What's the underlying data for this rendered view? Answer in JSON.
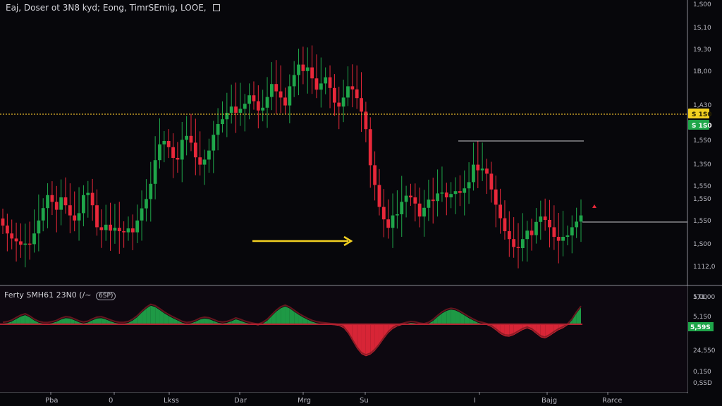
{
  "header": {
    "title": "Eaj, Doser ot 3N8 kyd; Eong, TimrSEmig, LOOE,",
    "icon": "square-icon"
  },
  "indicator_header": {
    "title": "Ferty SMH61 23N0 (/~",
    "badge": "6SP)"
  },
  "colors": {
    "background": "#07070b",
    "up": "#1fa64a",
    "down": "#e8283a",
    "level_line": "#e2b52b",
    "arrow": "#f2d021",
    "tag_yellow": "#f2d021",
    "tag_green": "#1fa64a"
  },
  "chart_data": [
    {
      "type": "candlestick",
      "title": "",
      "y_ticks": [
        "1,S00",
        "1S,10",
        "19,30",
        "1B,00",
        "1,A30",
        "1,5S0",
        "1,3S0",
        "1,550",
        "1,5S0",
        "1,5S0",
        "1,S00",
        "1112,0",
        "1T1,00"
      ],
      "x_ticks": [
        "Pba",
        "0",
        "Lkss",
        "Dar",
        "Mrg",
        "Su",
        "I",
        "Bajg",
        "Rarce"
      ],
      "price_tags": [
        {
          "label": "S 1S0",
          "style": "yellow"
        },
        {
          "label": "S 1S0",
          "style": "green"
        }
      ],
      "closes": [
        1.3,
        1.02,
        0.84,
        0.74,
        0.62,
        0.66,
        0.64,
        1.02,
        1.48,
        1.92,
        2.38,
        2.14,
        1.86,
        2.3,
        2.02,
        1.66,
        1.48,
        1.74,
        2.38,
        2.46,
        2.02,
        1.24,
        1.14,
        1.33,
        1.12,
        1.22,
        1.1,
        1.06,
        1.2,
        1.06,
        1.48,
        1.91,
        2.24,
        2.78,
        3.62,
        4.18,
        4.3,
        4.08,
        3.7,
        3.64,
        4.34,
        4.48,
        4.24,
        3.72,
        3.46,
        3.64,
        3.96,
        4.52,
        4.9,
        5.07,
        5.3,
        5.52,
        5.3,
        5.44,
        5.62,
        5.92,
        5.71,
        5.38,
        5.48,
        5.86,
        6.32,
        6.06,
        5.84,
        5.56,
        6.24,
        6.64,
        7.01,
        6.78,
        6.91,
        6.52,
        6.12,
        6.34,
        6.56,
        6.18,
        5.66,
        5.52,
        5.84,
        6.24,
        6.13,
        5.82,
        5.34,
        4.72,
        3.44,
        2.74,
        1.96,
        1.52,
        1.22,
        1.66,
        1.7,
        2.14,
        2.36,
        2.3,
        2.08,
        1.62,
        1.93,
        2.22,
        2.17,
        2.44,
        2.47,
        2.3,
        2.42,
        2.52,
        2.46,
        2.62,
        2.84,
        3.46,
        3.26,
        3.32,
        3.14,
        2.58,
        2.04,
        1.56,
        1.1,
        0.82,
        0.54,
        0.5,
        0.82,
        1.12,
        0.96,
        1.43,
        1.62,
        1.5,
        1.24,
        0.9,
        0.76,
        0.9,
        0.95,
        1.24,
        1.44,
        1.66
      ],
      "oscillator": {
        "label": "",
        "values": [
          0.06,
          0.12,
          0.28,
          0.54,
          0.78,
          0.92,
          0.7,
          0.38,
          0.16,
          0.06,
          0.04,
          0.12,
          0.26,
          0.48,
          0.62,
          0.58,
          0.4,
          0.2,
          0.08,
          0.18,
          0.4,
          0.58,
          0.62,
          0.48,
          0.3,
          0.14,
          0.06,
          0.06,
          0.14,
          0.38,
          0.72,
          1.18,
          1.58,
          1.88,
          1.74,
          1.44,
          1.12,
          0.84,
          0.6,
          0.38,
          0.16,
          0.04,
          0.1,
          0.26,
          0.48,
          0.58,
          0.52,
          0.34,
          0.16,
          0.08,
          0.14,
          0.3,
          0.5,
          0.36,
          0.18,
          0.06,
          -0.04,
          -0.12,
          0.06,
          0.36,
          0.82,
          1.28,
          1.62,
          1.8,
          1.6,
          1.28,
          0.96,
          0.7,
          0.46,
          0.26,
          0.12,
          0.04,
          0.0,
          -0.06,
          -0.1,
          -0.16,
          -0.38,
          -0.92,
          -1.7,
          -2.46,
          -3.02,
          -3.24,
          -3.08,
          -2.7,
          -2.14,
          -1.5,
          -0.9,
          -0.48,
          -0.22,
          -0.08,
          0.04,
          0.14,
          0.1,
          -0.02,
          -0.08,
          0.06,
          0.34,
          0.74,
          1.1,
          1.36,
          1.48,
          1.4,
          1.18,
          0.9,
          0.62,
          0.38,
          0.16,
          0.04,
          -0.08,
          -0.28,
          -0.62,
          -0.98,
          -1.22,
          -1.26,
          -1.1,
          -0.84,
          -0.58,
          -0.42,
          -0.6,
          -0.96,
          -1.32,
          -1.44,
          -1.2,
          -0.88,
          -0.6,
          -0.4,
          -0.1,
          0.4,
          1.1,
          1.7
        ],
        "y_ticks": [
          "5,00",
          "5,1S0",
          "5,59S",
          "24,550",
          "0,1S0",
          "0,SSD"
        ]
      }
    }
  ]
}
